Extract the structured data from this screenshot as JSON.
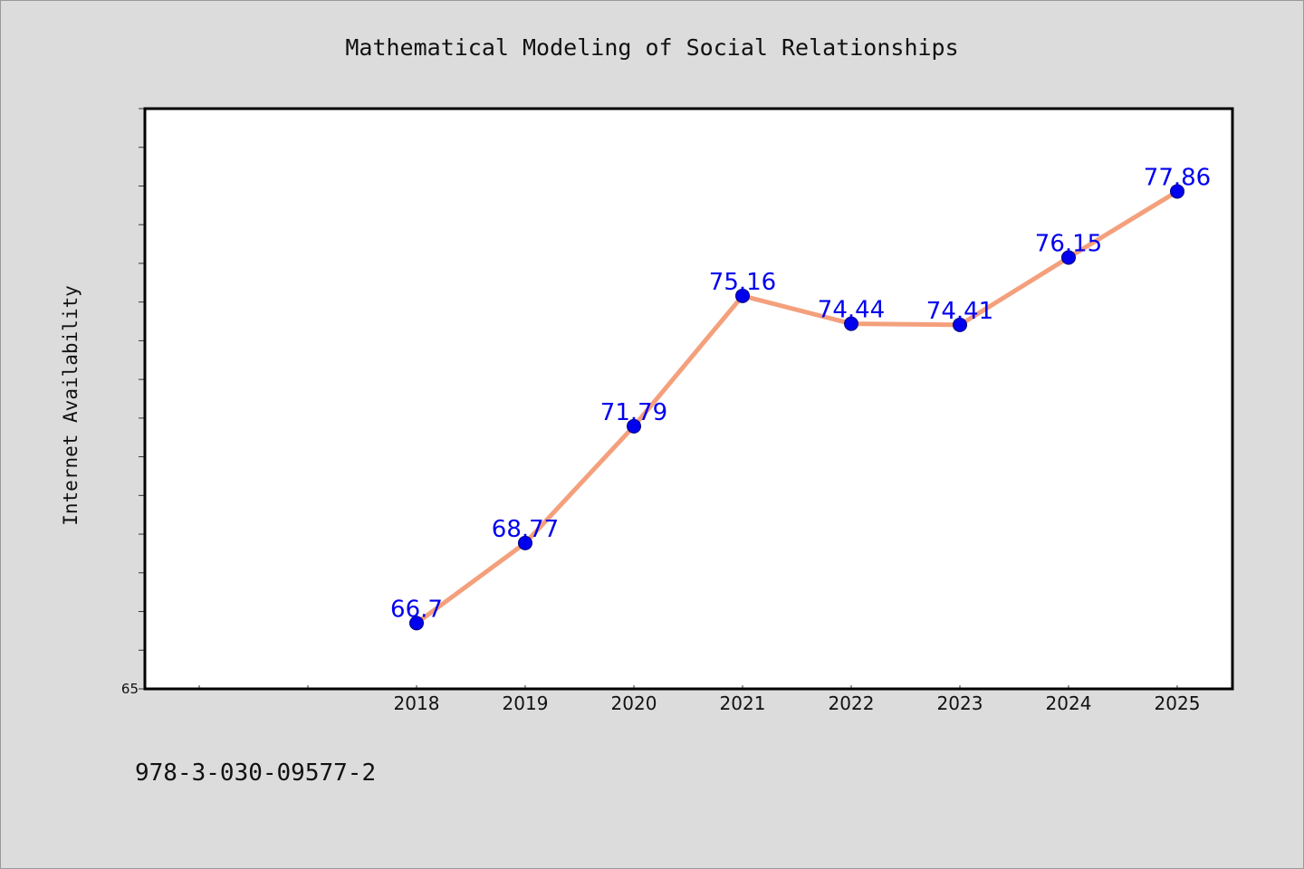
{
  "chart_data": {
    "type": "line",
    "title": "Mathematical Modeling of Social Relationships",
    "xlabel": "",
    "ylabel": "Internet Availability",
    "x": [
      "2018",
      "2019",
      "2020",
      "2021",
      "2022",
      "2023",
      "2024",
      "2025"
    ],
    "series": [
      {
        "values": [
          66.7,
          68.77,
          71.79,
          75.16,
          74.44,
          74.41,
          76.15,
          77.86
        ],
        "data_labels": [
          "66.7",
          "68.77",
          "71.79",
          "75.16",
          "74.44",
          "74.41",
          "76.15",
          "77.86"
        ]
      }
    ],
    "y_tick_labels": [
      "65"
    ],
    "ylim": [
      65,
      80
    ],
    "grid": false,
    "legend": "none",
    "colors": {
      "line": "#f4a07c",
      "marker": "#0000ee",
      "data_label": "#0000ee",
      "plot_background": "#ffffff",
      "figure_background": "#dcdcdc"
    }
  },
  "footer": {
    "text": "978-3-030-09577-2"
  }
}
